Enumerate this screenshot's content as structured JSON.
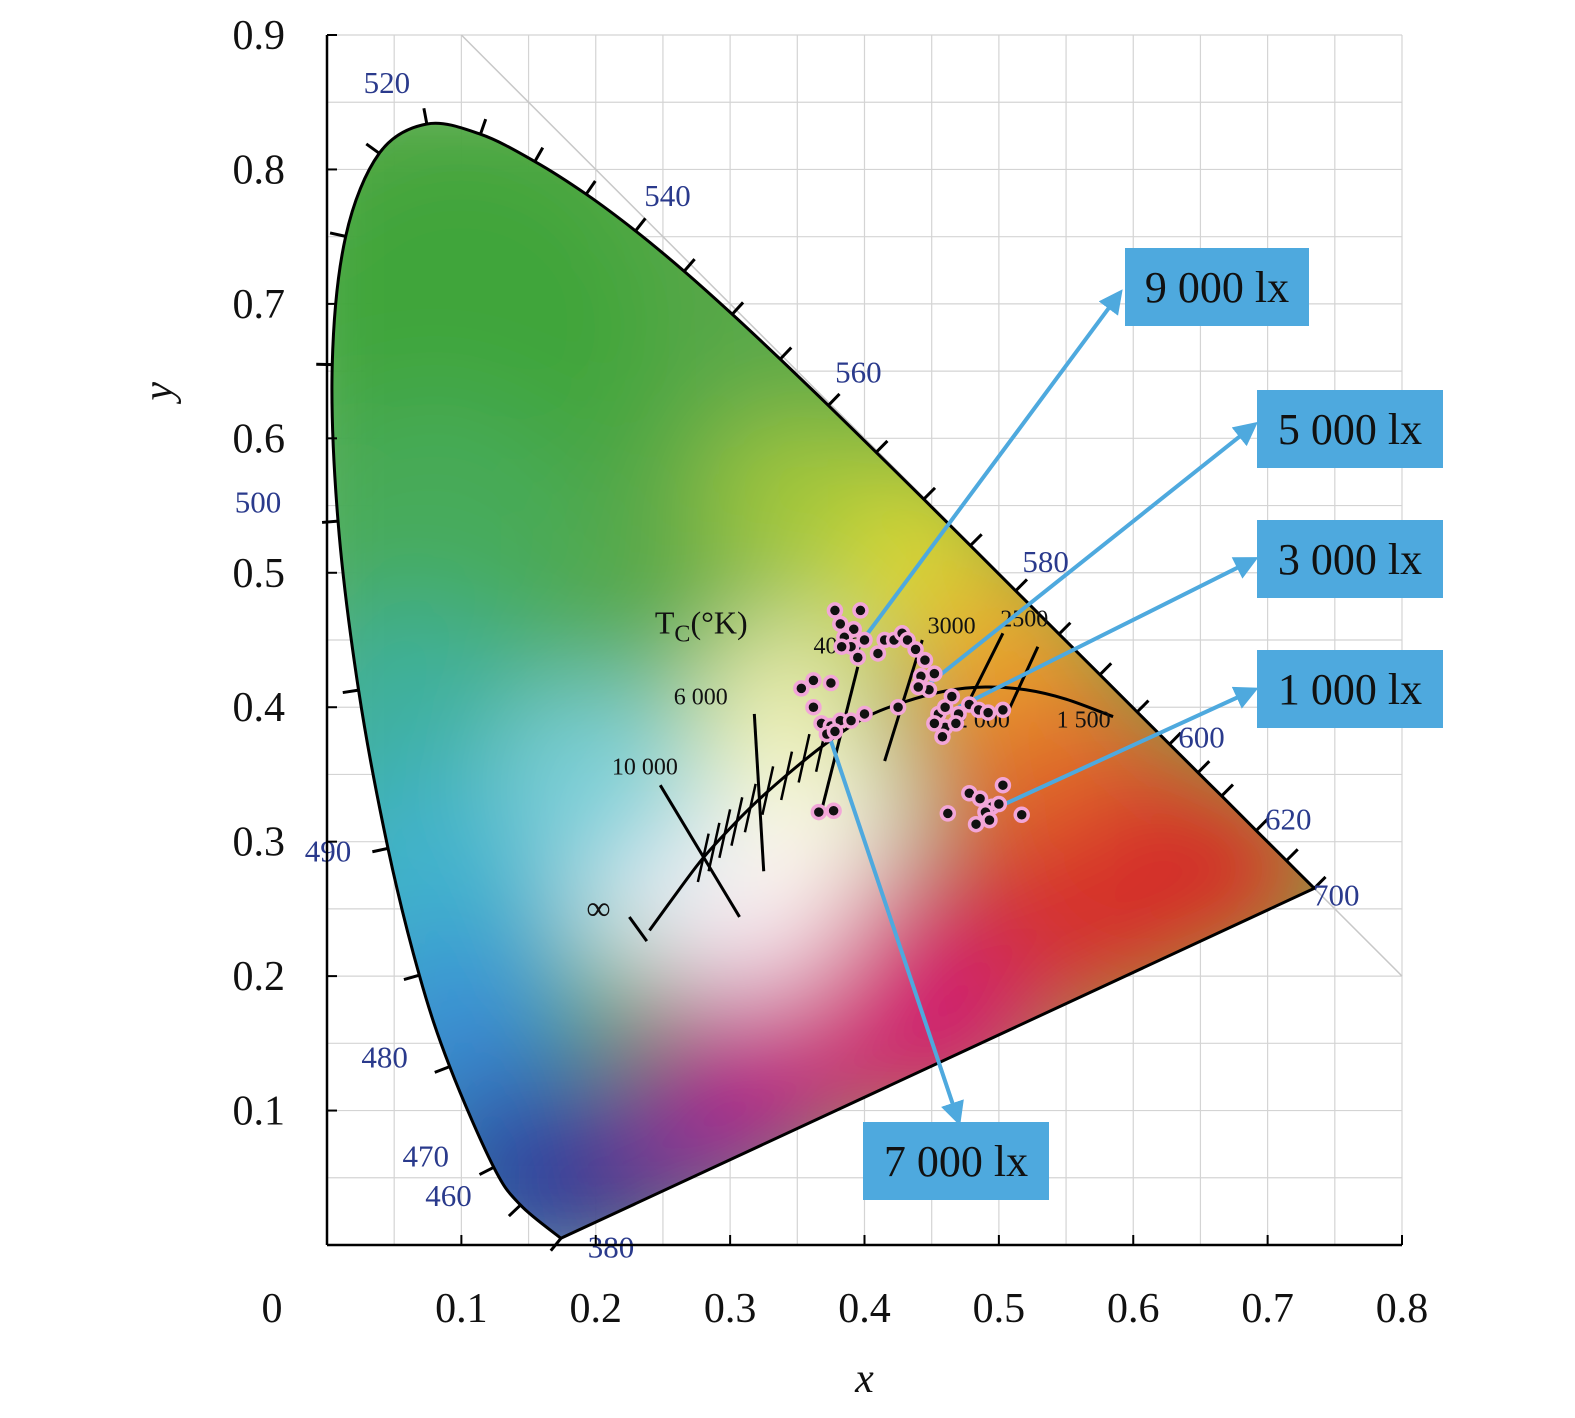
{
  "chart_data": {
    "type": "scatter",
    "xlabel": "x",
    "ylabel": "y",
    "xlim": [
      0,
      0.8
    ],
    "ylim": [
      0,
      0.9
    ],
    "x_ticks": [
      "0",
      "0.1",
      "0.2",
      "0.3",
      "0.4",
      "0.5",
      "0.6",
      "0.7",
      "0.8"
    ],
    "y_ticks": [
      "0.1",
      "0.2",
      "0.3",
      "0.4",
      "0.5",
      "0.6",
      "0.7",
      "0.8",
      "0.9"
    ],
    "grid": true,
    "spectral_locus_labels": [
      {
        "text": "380",
        "x": 0.1741,
        "y": 0.005
      },
      {
        "text": "460",
        "x": 0.144,
        "y": 0.0297
      },
      {
        "text": "470",
        "x": 0.1241,
        "y": 0.0578
      },
      {
        "text": "480",
        "x": 0.0913,
        "y": 0.1327
      },
      {
        "text": "490",
        "x": 0.0454,
        "y": 0.295
      },
      {
        "text": "500",
        "x": 0.0082,
        "y": 0.5384
      },
      {
        "text": "520",
        "x": 0.0743,
        "y": 0.8338
      },
      {
        "text": "540",
        "x": 0.2296,
        "y": 0.7543
      },
      {
        "text": "560",
        "x": 0.3731,
        "y": 0.6245
      },
      {
        "text": "580",
        "x": 0.5125,
        "y": 0.4866
      },
      {
        "text": "600",
        "x": 0.627,
        "y": 0.3725
      },
      {
        "text": "620",
        "x": 0.6915,
        "y": 0.3083
      },
      {
        "text": "700",
        "x": 0.7347,
        "y": 0.2653
      }
    ],
    "cct_title_main": "T",
    "cct_title_sub": "C",
    "cct_title_unit": "(°K)",
    "cct_labels": [
      "10 000",
      "6 000",
      "4000",
      "3000",
      "2500",
      "2 000",
      "1 500"
    ],
    "infinity_label": "∞",
    "series": [
      {
        "name": "9 000 lx",
        "target": [
          0.395,
          0.445
        ],
        "points": [
          [
            0.378,
            0.472
          ],
          [
            0.397,
            0.472
          ],
          [
            0.382,
            0.462
          ],
          [
            0.392,
            0.458
          ],
          [
            0.385,
            0.452
          ],
          [
            0.4,
            0.45
          ],
          [
            0.39,
            0.445
          ],
          [
            0.395,
            0.437
          ],
          [
            0.383,
            0.445
          ]
        ]
      },
      {
        "name": "5 000 lx",
        "target": [
          0.445,
          0.415
        ],
        "points": [
          [
            0.41,
            0.44
          ],
          [
            0.415,
            0.45
          ],
          [
            0.422,
            0.45
          ],
          [
            0.428,
            0.455
          ],
          [
            0.432,
            0.45
          ],
          [
            0.438,
            0.443
          ],
          [
            0.445,
            0.435
          ],
          [
            0.442,
            0.423
          ],
          [
            0.452,
            0.425
          ],
          [
            0.448,
            0.413
          ],
          [
            0.44,
            0.415
          ],
          [
            0.425,
            0.4
          ]
        ]
      },
      {
        "name": "3 000 lx",
        "target": [
          0.47,
          0.4
        ],
        "points": [
          [
            0.455,
            0.395
          ],
          [
            0.46,
            0.4
          ],
          [
            0.465,
            0.408
          ],
          [
            0.47,
            0.395
          ],
          [
            0.478,
            0.402
          ],
          [
            0.485,
            0.398
          ],
          [
            0.492,
            0.396
          ],
          [
            0.503,
            0.398
          ],
          [
            0.46,
            0.385
          ],
          [
            0.468,
            0.388
          ],
          [
            0.452,
            0.388
          ],
          [
            0.458,
            0.378
          ]
        ]
      },
      {
        "name": "1 000 lx",
        "target": [
          0.5,
          0.326
        ],
        "points": [
          [
            0.478,
            0.336
          ],
          [
            0.495,
            0.326
          ],
          [
            0.49,
            0.322
          ],
          [
            0.5,
            0.328
          ],
          [
            0.503,
            0.342
          ],
          [
            0.483,
            0.313
          ],
          [
            0.462,
            0.321
          ],
          [
            0.493,
            0.316
          ],
          [
            0.517,
            0.32
          ],
          [
            0.486,
            0.332
          ]
        ]
      },
      {
        "name": "7 000 lx",
        "target": [
          0.375,
          0.375
        ],
        "points": [
          [
            0.353,
            0.414
          ],
          [
            0.362,
            0.42
          ],
          [
            0.375,
            0.418
          ],
          [
            0.362,
            0.4
          ],
          [
            0.368,
            0.388
          ],
          [
            0.375,
            0.386
          ],
          [
            0.382,
            0.39
          ],
          [
            0.39,
            0.39
          ],
          [
            0.4,
            0.395
          ],
          [
            0.372,
            0.38
          ],
          [
            0.378,
            0.382
          ],
          [
            0.377,
            0.323
          ],
          [
            0.366,
            0.322
          ]
        ]
      }
    ],
    "annotations": [
      {
        "text": "9 000 lx",
        "arrow_to": [
          0.59,
          0.708
        ]
      },
      {
        "text": "5 000 lx",
        "arrow_to": [
          0.69,
          0.61
        ]
      },
      {
        "text": "3 000 lx",
        "arrow_to": [
          0.69,
          0.51
        ]
      },
      {
        "text": "1 000 lx",
        "arrow_to": [
          0.69,
          0.413
        ]
      },
      {
        "text": "7 000 lx",
        "arrow_to": [
          0.47,
          0.092
        ]
      }
    ],
    "colors": {
      "annotation_box": "#4ea9de",
      "annotation_arrow": "#4ea9de",
      "point_fill": "#111111",
      "point_edge": "#f2a6d8",
      "wavelength_label": "#2a3a8c"
    }
  }
}
